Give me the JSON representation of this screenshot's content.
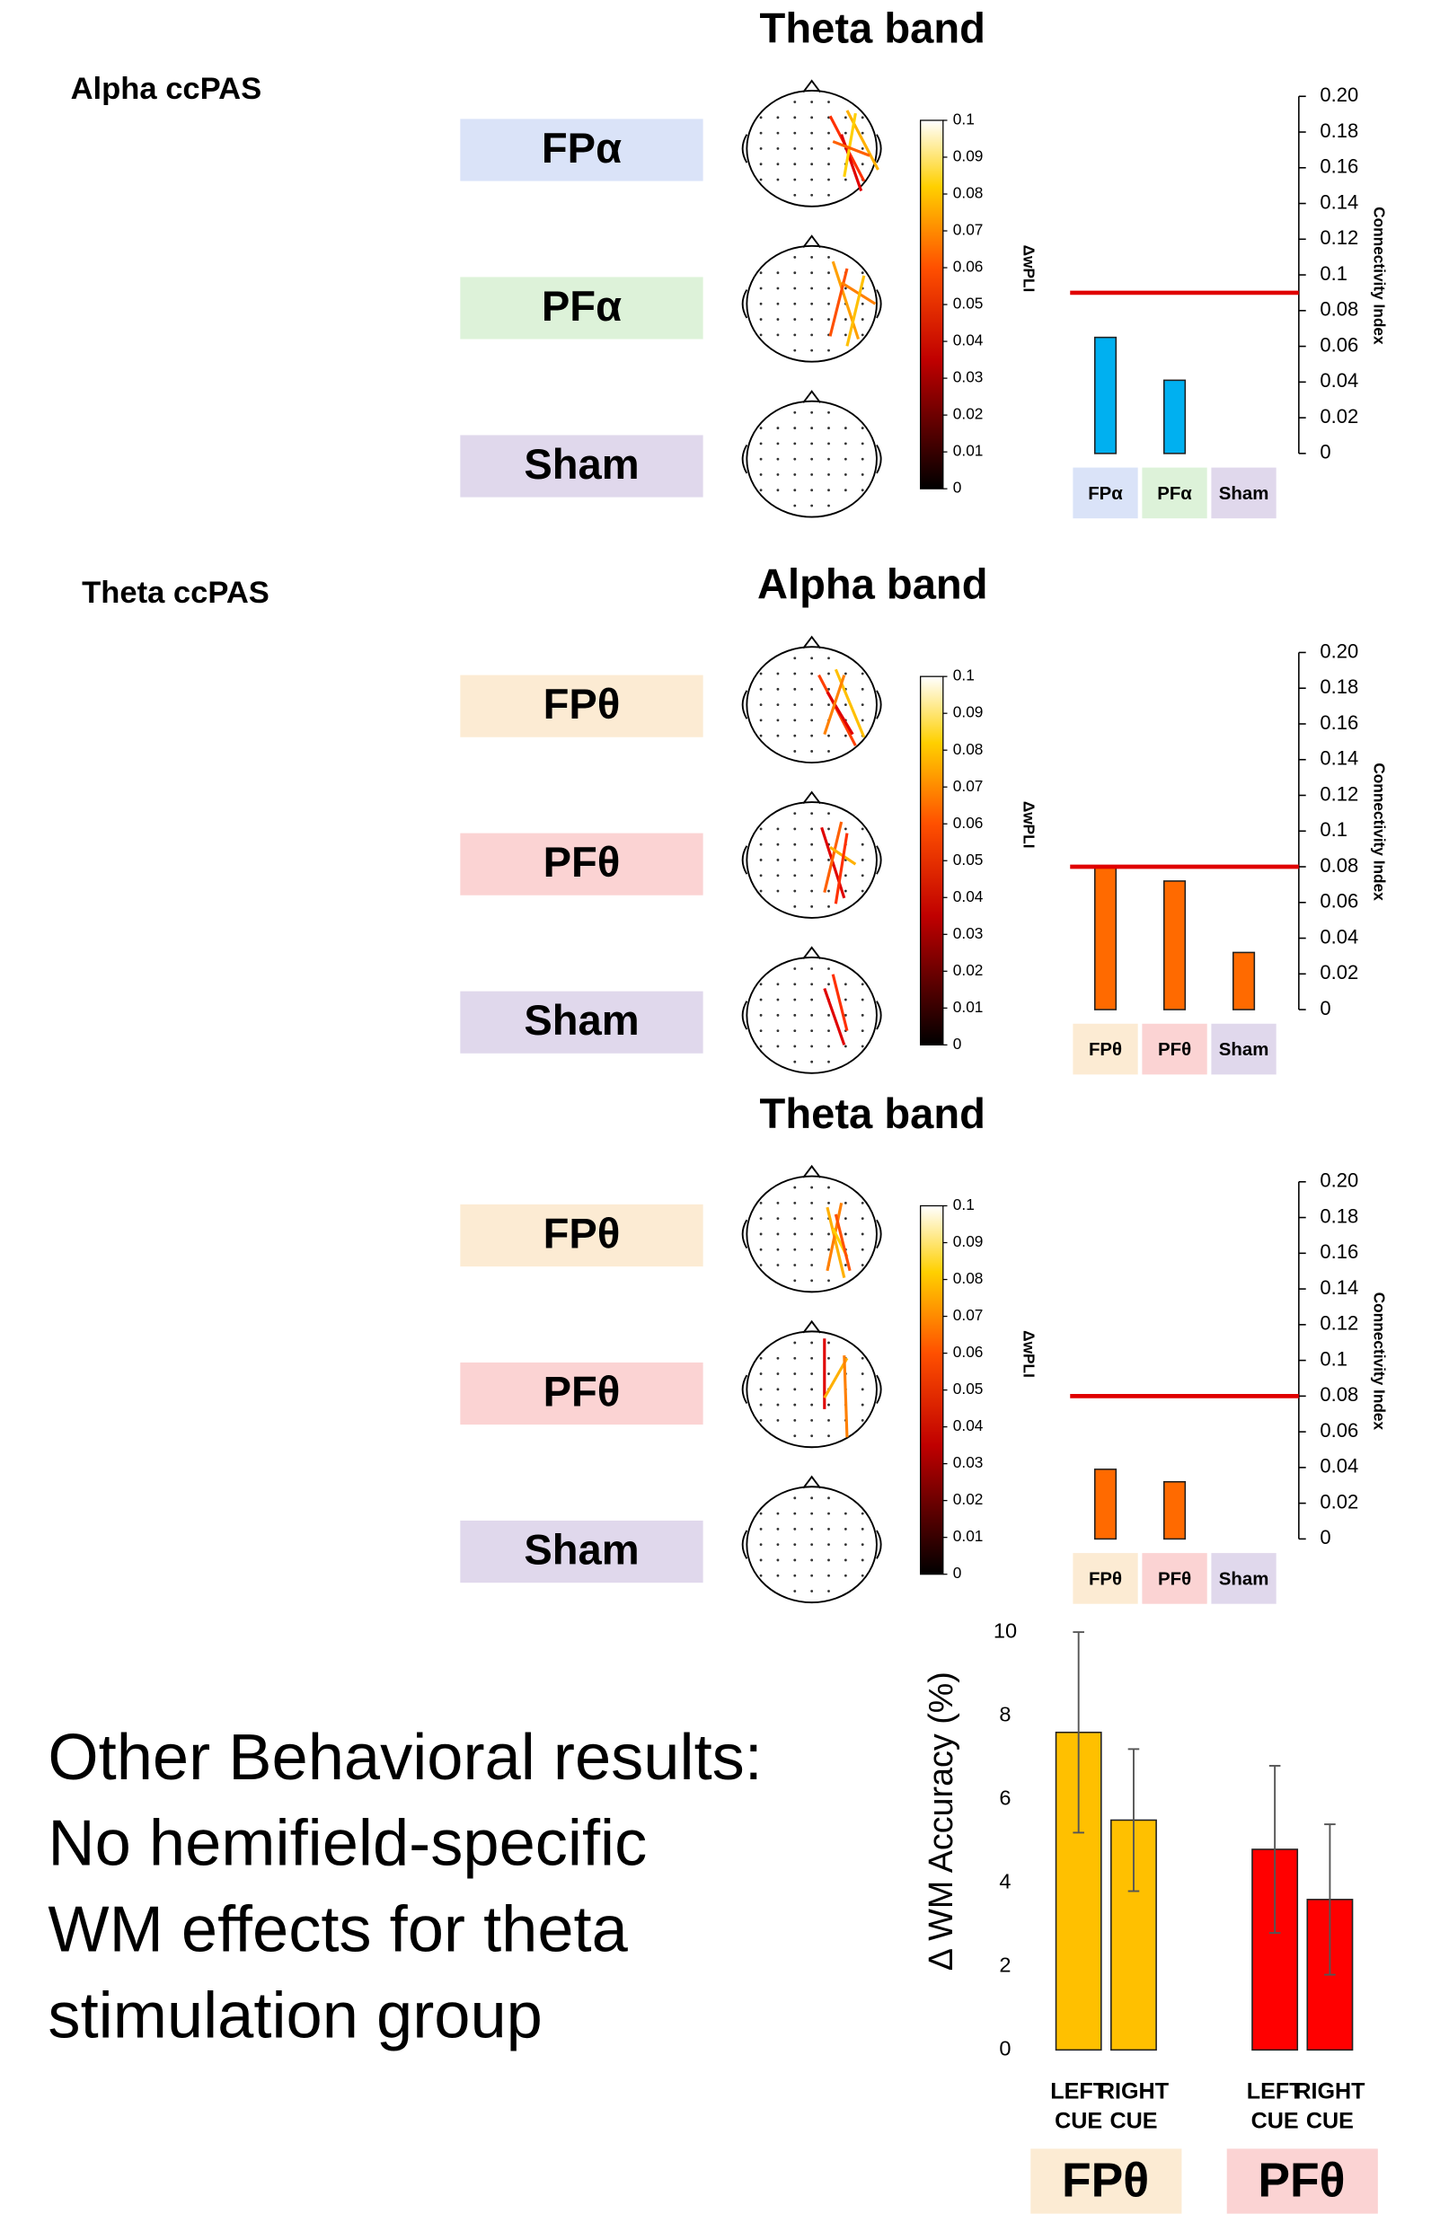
{
  "chart_data": [
    {
      "type": "bar",
      "title": "Theta band",
      "section": "Alpha ccPAS",
      "categories": [
        "FPα",
        "PFα",
        "Sham"
      ],
      "values": [
        0.065,
        0.041,
        0
      ],
      "color": "#00b0f0",
      "box_colors": [
        "#dae3f8",
        "#ddf2d9",
        "#e0d8ec"
      ],
      "threshold": 0.09,
      "threshold_color": "#e00000",
      "ylabel": "Connectivity Index",
      "ylim": [
        0,
        0.2
      ],
      "yticks": [
        0,
        0.02,
        0.04,
        0.06,
        0.08,
        0.1,
        0.12,
        0.14,
        0.16,
        0.18,
        {
          "value": 0.2,
          "label": "0.20"
        }
      ],
      "colorbar": {
        "label": "ΔwPLI",
        "lim": [
          0,
          0.1
        ],
        "ticks": [
          0,
          0.01,
          0.02,
          0.03,
          0.04,
          0.05,
          0.06,
          0.07,
          0.08,
          0.09,
          0.1
        ]
      }
    },
    {
      "type": "bar",
      "title": "Alpha band",
      "section": "Theta ccPAS",
      "categories": [
        "FPθ",
        "PFθ",
        "Sham"
      ],
      "values": [
        0.08,
        0.072,
        0.032
      ],
      "color": "#ff6a00",
      "box_colors": [
        "#fcebd3",
        "#fbd3d3",
        "#e0d8ec"
      ],
      "threshold": 0.08,
      "threshold_color": "#e00000",
      "ylabel": "Connectivity Index",
      "ylim": [
        0,
        0.2
      ],
      "yticks": [
        0,
        0.02,
        0.04,
        0.06,
        0.08,
        0.1,
        0.12,
        0.14,
        0.16,
        0.18,
        {
          "value": 0.2,
          "label": "0.20"
        }
      ],
      "colorbar": {
        "label": "ΔwPLI",
        "lim": [
          0,
          0.1
        ],
        "ticks": [
          0,
          0.01,
          0.02,
          0.03,
          0.04,
          0.05,
          0.06,
          0.07,
          0.08,
          0.09,
          0.1
        ]
      }
    },
    {
      "type": "bar",
      "title": "Theta band",
      "categories": [
        "FPθ",
        "PFθ",
        "Sham"
      ],
      "values": [
        0.039,
        0.032,
        0
      ],
      "color": "#ff6a00",
      "box_colors": [
        "#fcebd3",
        "#fbd3d3",
        "#e0d8ec"
      ],
      "threshold": 0.08,
      "threshold_color": "#e00000",
      "ylabel": "Connectivity Index",
      "ylim": [
        0,
        0.2
      ],
      "yticks": [
        0,
        0.02,
        0.04,
        0.06,
        0.08,
        0.1,
        0.12,
        0.14,
        0.16,
        0.18,
        {
          "value": 0.2,
          "label": "0.20"
        }
      ],
      "colorbar": {
        "label": "ΔwPLI",
        "lim": [
          0,
          0.1
        ],
        "ticks": [
          0,
          0.01,
          0.02,
          0.03,
          0.04,
          0.05,
          0.06,
          0.07,
          0.08,
          0.09,
          0.1
        ]
      }
    },
    {
      "type": "grouped_bar",
      "ylabel": "Δ WM Accuracy (%)",
      "categories": [
        "LEFT CUE",
        "RIGHT CUE"
      ],
      "series": [
        {
          "name": "FPθ",
          "color": "#ffc000",
          "box_color": "#fcebd3",
          "values": [
            7.6,
            5.5
          ],
          "errors": [
            2.4,
            1.7
          ]
        },
        {
          "name": "PFθ",
          "color": "#ff0000",
          "box_color": "#fbd3d3",
          "values": [
            4.8,
            3.6
          ],
          "errors": [
            2.0,
            1.8
          ]
        }
      ],
      "ylim": [
        0,
        10
      ],
      "yticks": [
        0,
        2,
        4,
        6,
        8,
        10
      ]
    }
  ],
  "text": {
    "lines": [
      "Other Behavioral results:",
      "No hemifield-specific",
      "WM effects for theta",
      "stimulation group"
    ]
  }
}
